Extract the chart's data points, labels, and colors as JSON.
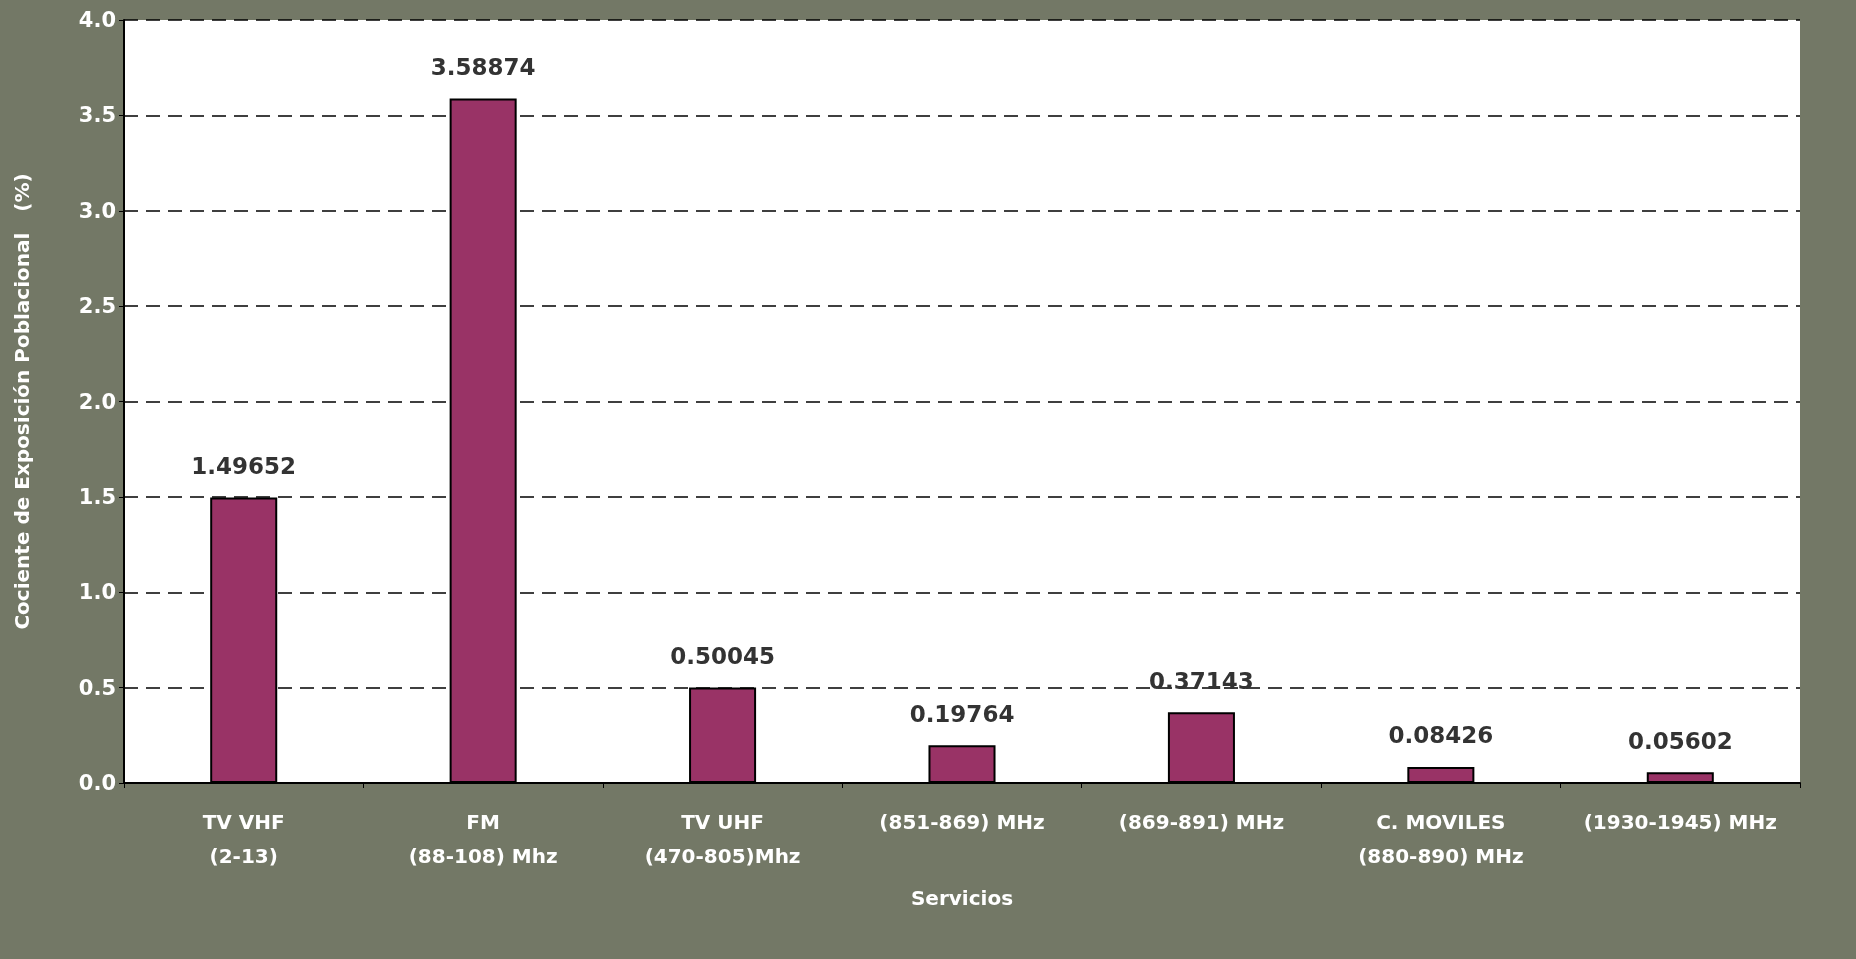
{
  "chart_data": {
    "type": "bar",
    "xlabel": "Servicios",
    "ylabel": "Cociente de Exposición Poblacional   (%)",
    "categories": [
      "TV VHF\n(2-13)",
      "FM\n(88-108) Mhz",
      "TV UHF\n(470-805)Mhz",
      "(851-869) MHz",
      "(869-891) MHz",
      "C. MOVILES\n(880-890) MHz",
      "(1930-1945) MHz"
    ],
    "values": [
      1.49652,
      3.58874,
      0.50045,
      0.19764,
      0.37143,
      0.08426,
      0.05602
    ],
    "color": "#993366",
    "ylim": [
      0,
      4
    ],
    "yticks": [
      {
        "value": 0,
        "label": "0.0"
      },
      {
        "value": 0.5,
        "label": "0.5"
      },
      {
        "value": 1,
        "label": "1.0"
      },
      {
        "value": 1.5,
        "label": "1.5"
      },
      {
        "value": 2,
        "label": "2.0"
      },
      {
        "value": 2.5,
        "label": "2.5"
      },
      {
        "value": 3,
        "label": "3.0"
      },
      {
        "value": 3.5,
        "label": "3.5"
      },
      {
        "value": 4,
        "label": "4.0"
      }
    ],
    "grid": "y",
    "data_labels": true
  }
}
